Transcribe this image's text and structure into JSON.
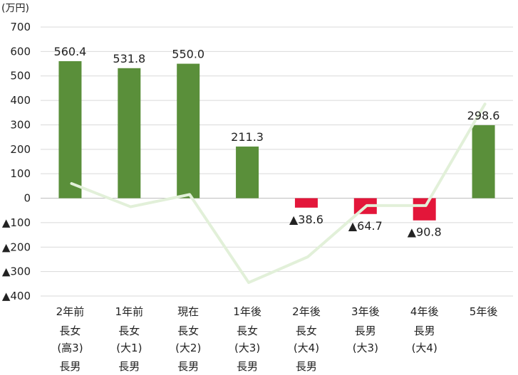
{
  "chart_data": {
    "type": "bar",
    "unit": "(万円)",
    "y_ticks": [
      {
        "value": 700,
        "label": "700"
      },
      {
        "value": 600,
        "label": "600"
      },
      {
        "value": 500,
        "label": "500"
      },
      {
        "value": 400,
        "label": "400"
      },
      {
        "value": 300,
        "label": "300"
      },
      {
        "value": 200,
        "label": "200"
      },
      {
        "value": 100,
        "label": "100"
      },
      {
        "value": 0,
        "label": "0"
      },
      {
        "value": -100,
        "label": "▲100"
      },
      {
        "value": -200,
        "label": "▲200"
      },
      {
        "value": -300,
        "label": "▲300"
      },
      {
        "value": -400,
        "label": "▲400"
      }
    ],
    "ylim": [
      -400,
      700
    ],
    "grid": true,
    "categories": [
      {
        "lines": [
          "2年前",
          "長女",
          "(高3)",
          "長男"
        ]
      },
      {
        "lines": [
          "1年前",
          "長女",
          "(大1)",
          "長男"
        ]
      },
      {
        "lines": [
          "現在",
          "長女",
          "(大2)",
          "長男"
        ]
      },
      {
        "lines": [
          "1年後",
          "長女",
          "(大3)",
          "長男"
        ]
      },
      {
        "lines": [
          "2年後",
          "長女",
          "(大4)",
          "長男"
        ]
      },
      {
        "lines": [
          "3年後",
          "長男",
          "(大3)"
        ]
      },
      {
        "lines": [
          "4年後",
          "長男",
          "(大4)"
        ]
      },
      {
        "lines": [
          "5年後"
        ]
      }
    ],
    "series": [
      {
        "kind": "bar",
        "values": [
          560.4,
          531.8,
          550.0,
          211.3,
          -38.6,
          -64.7,
          -90.8,
          298.6
        ],
        "labels": [
          "560.4",
          "531.8",
          "550.0",
          "211.3",
          "▲38.6",
          "▲64.7",
          "▲90.8",
          "298.6"
        ]
      },
      {
        "kind": "line",
        "values": [
          60,
          -35,
          15,
          -345,
          -240,
          -30,
          -30,
          385
        ]
      }
    ],
    "colors": {
      "positive": "#5a8f3a",
      "negative": "#e3163a",
      "line": "#e2f0d9",
      "grid": "#d9d9d9",
      "zero_axis": "#bfbfbf"
    }
  }
}
